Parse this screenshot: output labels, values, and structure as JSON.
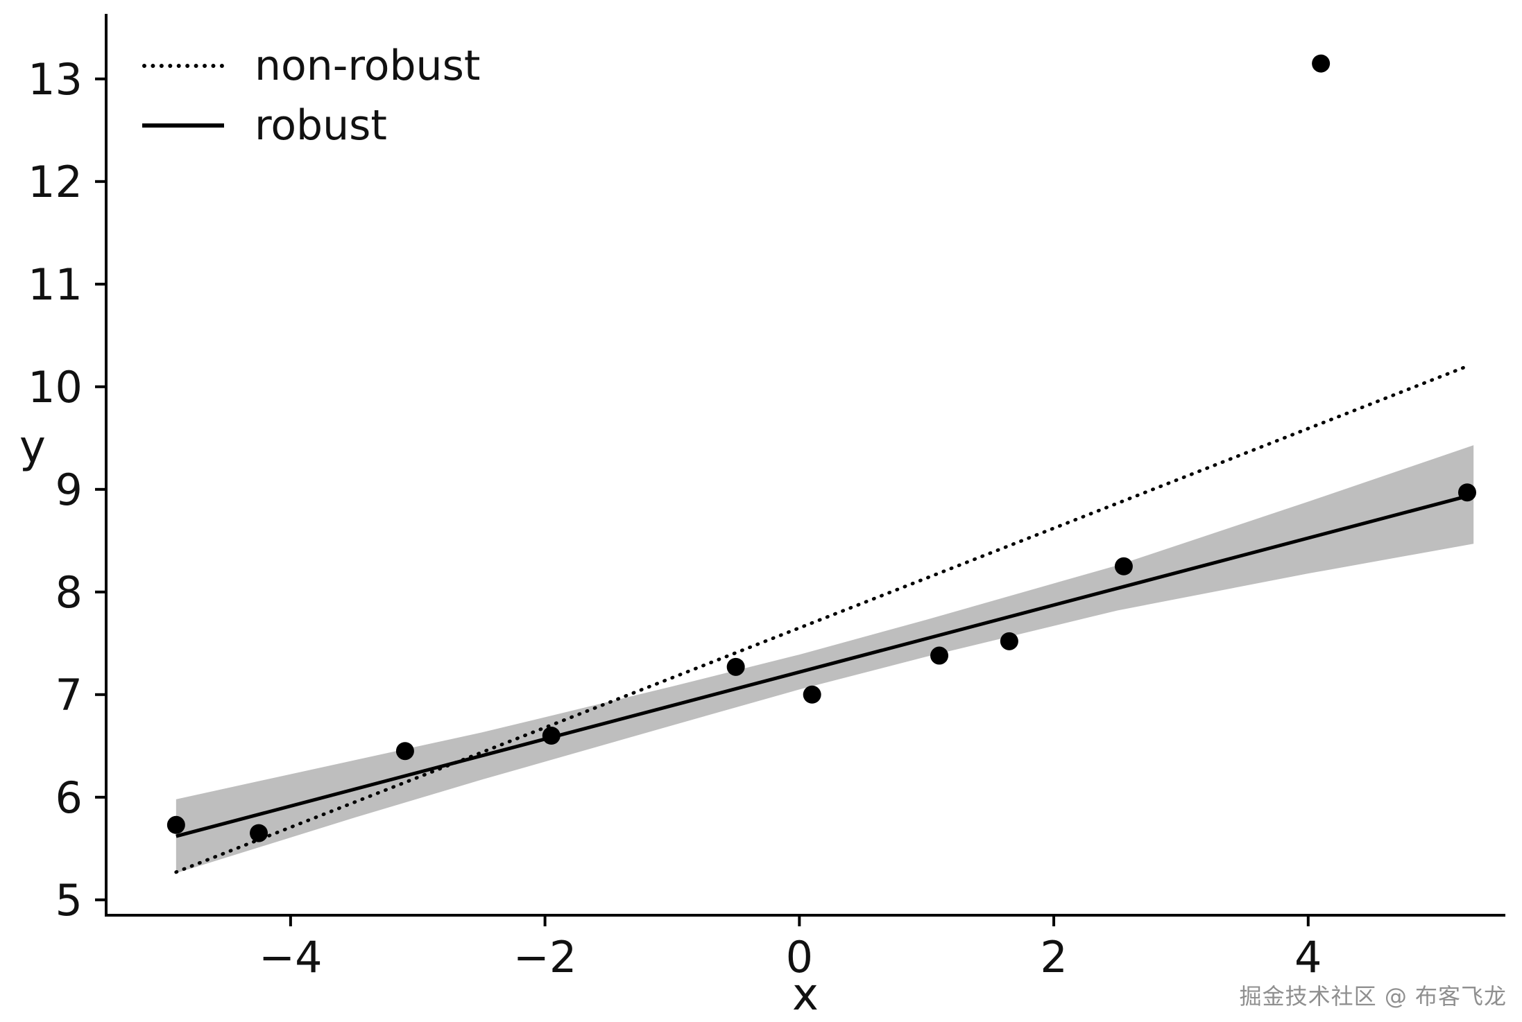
{
  "chart_data": {
    "type": "scatter",
    "title": "",
    "xlabel": "x",
    "ylabel": "y",
    "xlim": [
      -5.45,
      5.55
    ],
    "ylim": [
      4.85,
      13.6
    ],
    "grid": false,
    "legend_position": "upper left",
    "xticks": [
      -4,
      -2,
      0,
      2,
      4
    ],
    "xtick_labels": [
      "−4",
      "−2",
      "0",
      "2",
      "4"
    ],
    "yticks": [
      5,
      6,
      7,
      8,
      9,
      10,
      11,
      12,
      13
    ],
    "ytick_labels": [
      "5",
      "6",
      "7",
      "8",
      "9",
      "10",
      "11",
      "12",
      "13"
    ],
    "points": [
      [
        -4.9,
        5.73
      ],
      [
        -4.25,
        5.65
      ],
      [
        -3.1,
        6.45
      ],
      [
        -1.95,
        6.6
      ],
      [
        -0.5,
        7.27
      ],
      [
        0.1,
        7.0
      ],
      [
        1.1,
        7.38
      ],
      [
        1.65,
        7.52
      ],
      [
        2.55,
        8.25
      ],
      [
        4.1,
        13.15
      ],
      [
        5.25,
        8.97
      ]
    ],
    "outlier": [
      4.1,
      13.15
    ],
    "robust_line": {
      "x": [
        -4.9,
        5.3
      ],
      "y": [
        5.62,
        8.95
      ]
    },
    "nonrobust_line": {
      "x": [
        -4.9,
        5.25
      ],
      "y": [
        5.27,
        10.2
      ]
    },
    "band": {
      "x": [
        -4.9,
        -3.5,
        -2.5,
        -1.0,
        0.0,
        1.0,
        2.5,
        4.0,
        5.3
      ],
      "upper": [
        5.98,
        6.36,
        6.63,
        7.08,
        7.39,
        7.73,
        8.26,
        8.88,
        9.43
      ],
      "lower": [
        5.26,
        5.8,
        6.17,
        6.7,
        7.05,
        7.37,
        7.82,
        8.18,
        8.47
      ]
    },
    "legend": [
      {
        "label": "non-robust",
        "style": "dotted"
      },
      {
        "label": "robust",
        "style": "solid"
      }
    ],
    "colors": {
      "band": "#b3b3b3",
      "line": "#000000",
      "point": "#000000",
      "axis": "#000000",
      "tick_label": "#111111"
    }
  },
  "watermark": "掘金技术社区 @ 布客飞龙"
}
